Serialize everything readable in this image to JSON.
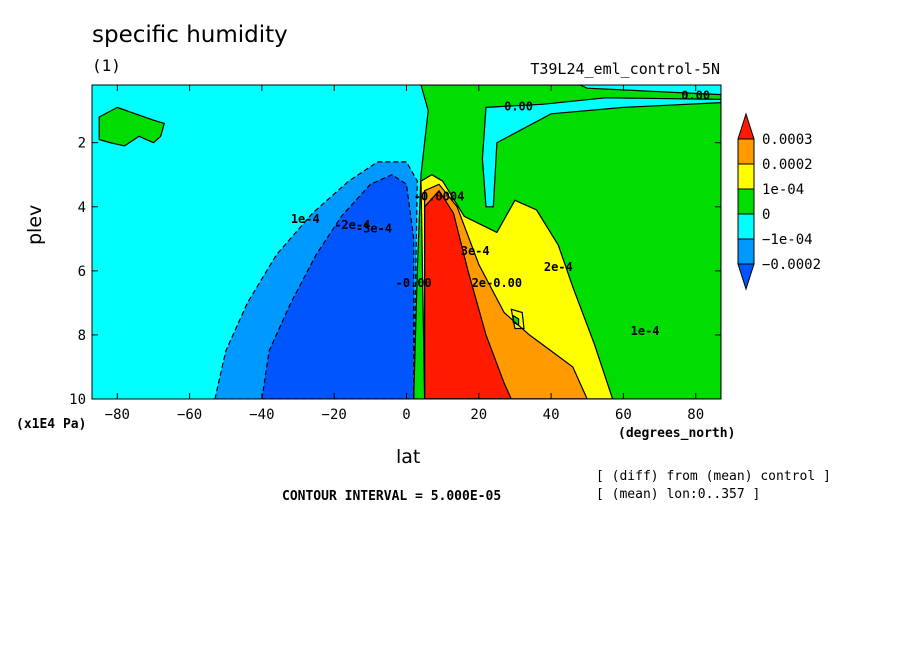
{
  "chart_data": {
    "type": "heatmap",
    "title": "specific humidity",
    "subtitle": "(1)",
    "run_name": "T39L24_eml_control-5N",
    "xlabel": "lat",
    "x_units": "(degrees_north)",
    "ylabel": "plev",
    "y_units": "(x1E4 Pa)",
    "xlim": [
      -87,
      87
    ],
    "ylim": [
      10,
      0.2
    ],
    "x_ticks": [
      -80,
      -60,
      -40,
      -20,
      0,
      20,
      40,
      60,
      80
    ],
    "y_ticks": [
      2,
      4,
      6,
      8,
      10
    ],
    "contour_interval_text": "CONTOUR INTERVAL = 5.000E-05",
    "notes": [
      "[ (diff) from (mean) control ]",
      "[ (mean) lon:0..357 ]"
    ],
    "colorbar": {
      "labels": [
        "0.0003",
        "0.0002",
        "1e-04",
        "0",
        "−1e-04",
        "−0.0002"
      ],
      "bins": [
        {
          "range": [
            0.0003,
            null
          ],
          "color": "#ff1a00"
        },
        {
          "range": [
            0.0002,
            0.0003
          ],
          "color": "#ff9a00"
        },
        {
          "range": [
            0.0001,
            0.0002
          ],
          "color": "#ffff00"
        },
        {
          "range": [
            0,
            0.0001
          ],
          "color": "#00dd00"
        },
        {
          "range": [
            -0.0001,
            0
          ],
          "color": "#00ffff"
        },
        {
          "range": [
            -0.0002,
            -0.0001
          ],
          "color": "#0099ff"
        },
        {
          "range": [
            null,
            -0.0002
          ],
          "color": "#0055ff"
        }
      ]
    },
    "regions": [
      {
        "name": "neutral background",
        "value_range": [
          -0.0001,
          0
        ],
        "points": [
          [
            -87,
            0.2
          ],
          [
            87,
            0.2
          ],
          [
            87,
            10
          ],
          [
            -87,
            10
          ]
        ]
      },
      {
        "name": "upper-level positive (north)",
        "value_range": [
          0,
          0.0001
        ],
        "points": [
          [
            4,
            0.2
          ],
          [
            16,
            0.2
          ],
          [
            48,
            0.2
          ],
          [
            50,
            0.3
          ],
          [
            87,
            0.5
          ],
          [
            87,
            10
          ],
          [
            2,
            10
          ],
          [
            3,
            6
          ],
          [
            4,
            3
          ],
          [
            6,
            1
          ]
        ]
      },
      {
        "name": "upper negative tongue",
        "value_range": [
          -0.0001,
          0
        ],
        "points": [
          [
            22,
            0.9
          ],
          [
            38,
            0.8
          ],
          [
            55,
            0.6
          ],
          [
            87,
            0.65
          ],
          [
            87,
            0.75
          ],
          [
            60,
            0.9
          ],
          [
            40,
            1.1
          ],
          [
            25,
            2.0
          ],
          [
            24,
            4.0
          ],
          [
            22,
            4.0
          ],
          [
            21,
            2.5
          ]
        ]
      },
      {
        "name": "high-latitude positive patch",
        "value_range": [
          0,
          0.0001
        ],
        "points": [
          [
            -85,
            1.2
          ],
          [
            -80,
            0.9
          ],
          [
            -75,
            1.1
          ],
          [
            -70,
            1.3
          ],
          [
            -67,
            1.4
          ],
          [
            -68,
            1.8
          ],
          [
            -70,
            2.0
          ],
          [
            -74,
            1.8
          ],
          [
            -78,
            2.1
          ],
          [
            -82,
            2.0
          ],
          [
            -85,
            1.9
          ]
        ]
      },
      {
        "name": "negative lobe (outer)",
        "value_range": [
          -0.0002,
          -0.0001
        ],
        "points": [
          [
            -53,
            10
          ],
          [
            -50,
            8.5
          ],
          [
            -44,
            7
          ],
          [
            -36,
            5.5
          ],
          [
            -26,
            4.2
          ],
          [
            -16,
            3.2
          ],
          [
            -8,
            2.6
          ],
          [
            0,
            2.6
          ],
          [
            3,
            3.2
          ],
          [
            2,
            10
          ]
        ]
      },
      {
        "name": "negative lobe (core)",
        "value_range": [
          null,
          -0.0002
        ],
        "points": [
          [
            -40,
            10
          ],
          [
            -38,
            8.5
          ],
          [
            -32,
            7
          ],
          [
            -25,
            5.5
          ],
          [
            -18,
            4.3
          ],
          [
            -10,
            3.3
          ],
          [
            -4,
            3.0
          ],
          [
            0,
            3.3
          ],
          [
            2,
            5
          ],
          [
            2,
            10
          ]
        ]
      },
      {
        "name": "positive lobe (outer)",
        "value_range": [
          0.0001,
          0.0002
        ],
        "points": [
          [
            4,
            3.2
          ],
          [
            7,
            3.0
          ],
          [
            10,
            3.2
          ],
          [
            16,
            4.3
          ],
          [
            25,
            4.8
          ],
          [
            30,
            3.8
          ],
          [
            36,
            4.1
          ],
          [
            42,
            5.2
          ],
          [
            46,
            6.5
          ],
          [
            52,
            8.3
          ],
          [
            57,
            10
          ],
          [
            5,
            10
          ]
        ]
      },
      {
        "name": "positive lobe (middle)",
        "value_range": [
          0.0002,
          0.0003
        ],
        "points": [
          [
            5,
            3.5
          ],
          [
            9,
            3.3
          ],
          [
            14,
            4.0
          ],
          [
            20,
            5.8
          ],
          [
            27,
            7.3
          ],
          [
            34,
            8.0
          ],
          [
            40,
            8.5
          ],
          [
            46,
            9.0
          ],
          [
            50,
            10
          ],
          [
            5,
            10
          ]
        ]
      },
      {
        "name": "positive lobe (core)",
        "value_range": [
          0.0003,
          null
        ],
        "points": [
          [
            5,
            4.0
          ],
          [
            9,
            3.5
          ],
          [
            13,
            4.2
          ],
          [
            17,
            6.0
          ],
          [
            22,
            8.0
          ],
          [
            27,
            9.5
          ],
          [
            29,
            10
          ],
          [
            5,
            10
          ]
        ]
      },
      {
        "name": "yellow island",
        "value_range": [
          0.0001,
          0.0002
        ],
        "points": [
          [
            29,
            7.2
          ],
          [
            32,
            7.3
          ],
          [
            32.5,
            7.8
          ],
          [
            30,
            7.8
          ]
        ]
      },
      {
        "name": "green island",
        "value_range": [
          0,
          0.0001
        ],
        "points": [
          [
            29.5,
            7.4
          ],
          [
            31,
            7.5
          ],
          [
            31,
            7.7
          ],
          [
            29.5,
            7.6
          ]
        ]
      }
    ],
    "contour_labels": [
      {
        "text": "0.00",
        "x": 27,
        "y": 1.0
      },
      {
        "text": "0.00",
        "x": 76,
        "y": 0.65
      },
      {
        "text": "1e-4",
        "x": -32,
        "y": 4.5
      },
      {
        "text": "-2e-4",
        "x": -20,
        "y": 4.7
      },
      {
        "text": "-3e-4",
        "x": -14,
        "y": 4.8
      },
      {
        "text": "-0.0004",
        "x": 2,
        "y": 3.8
      },
      {
        "text": "-0.00",
        "x": -3,
        "y": 6.5
      },
      {
        "text": "2e-4",
        "x": 38,
        "y": 6.0
      },
      {
        "text": "1e-4",
        "x": 62,
        "y": 8.0
      },
      {
        "text": "3e-4",
        "x": 15,
        "y": 5.5
      },
      {
        "text": "2e-0.00",
        "x": 18,
        "y": 6.5
      }
    ]
  }
}
